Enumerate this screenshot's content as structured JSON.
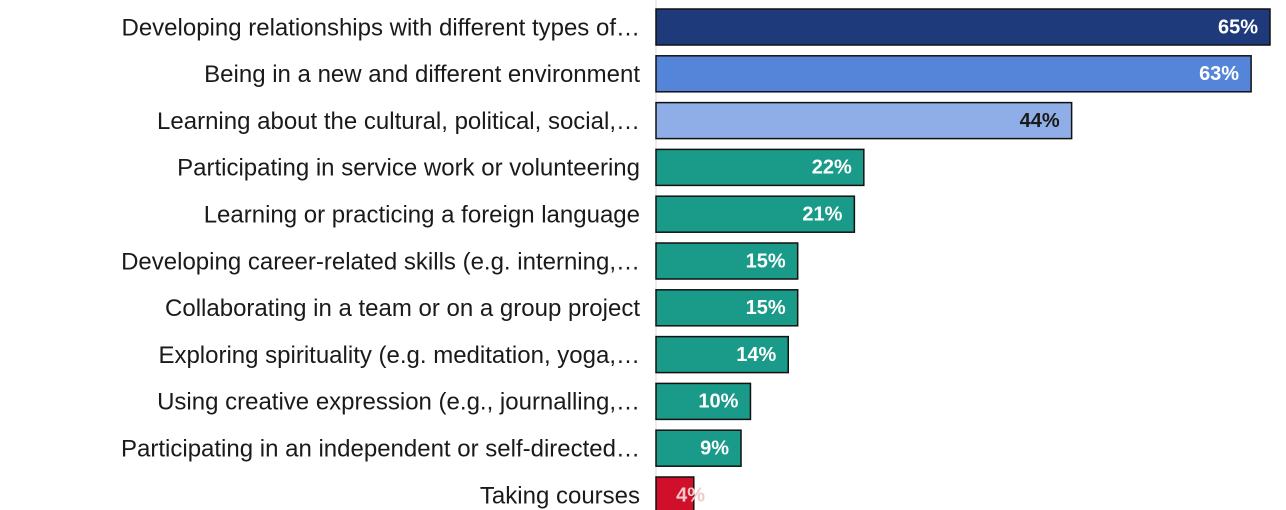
{
  "chart_data": {
    "type": "barh",
    "categories": [
      "Developing relationships with different types of…",
      "Being in a new and different environment",
      "Learning about the cultural, political, social,…",
      "Participating in service work or volunteering",
      "Learning or practicing a foreign language",
      "Developing career-related skills (e.g. interning,…",
      "Collaborating in a team or on a group project",
      "Exploring spirituality (e.g. meditation, yoga,…",
      "Using creative expression (e.g., journalling,…",
      "Participating in an independent or self-directed…",
      "Taking courses"
    ],
    "values": [
      65,
      63,
      44,
      22,
      21,
      15,
      15,
      14,
      10,
      9,
      4
    ],
    "value_labels": [
      "65%",
      "63%",
      "44%",
      "22%",
      "21%",
      "15%",
      "15%",
      "14%",
      "10%",
      "9%",
      "4%"
    ],
    "colors": [
      "#1f3a7a",
      "#5585d9",
      "#8faee8",
      "#1a9a88",
      "#1a9a88",
      "#1a9a88",
      "#1a9a88",
      "#1a9a88",
      "#1a9a88",
      "#1a9a88",
      "#d0102a"
    ],
    "label_colors": [
      "#ffffff",
      "#ffffff",
      "#1a1a1a",
      "#ffffff",
      "#ffffff",
      "#ffffff",
      "#ffffff",
      "#ffffff",
      "#ffffff",
      "#ffffff",
      "#f2c9c9"
    ]
  }
}
